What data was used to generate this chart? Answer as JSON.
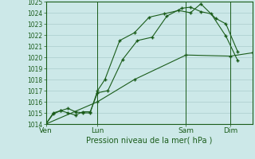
{
  "background_color": "#cce8e8",
  "grid_color": "#aacccc",
  "line_color": "#1a5c1a",
  "marker_color": "#1a5c1a",
  "xlabel": "Pression niveau de la mer( hPa )",
  "ylim": [
    1014,
    1025
  ],
  "xlim": [
    0,
    14
  ],
  "yticks": [
    1014,
    1015,
    1016,
    1017,
    1018,
    1019,
    1020,
    1021,
    1022,
    1023,
    1024,
    1025
  ],
  "xtick_labels": [
    "Ven",
    "Lun",
    "Sam",
    "Dim"
  ],
  "xtick_positions": [
    0,
    3.5,
    9.5,
    12.5
  ],
  "vline_positions": [
    0,
    3.5,
    9.5,
    12.5
  ],
  "series1_x": [
    0,
    0.5,
    1.0,
    1.5,
    2.0,
    2.5,
    3.0,
    3.5,
    4.2,
    5.2,
    6.2,
    7.2,
    8.2,
    9.2,
    9.8,
    10.5,
    11.2,
    12.2,
    13.0
  ],
  "series1_y": [
    1014.0,
    1014.9,
    1015.2,
    1015.0,
    1014.8,
    1015.1,
    1015.1,
    1016.8,
    1017.0,
    1019.8,
    1021.5,
    1021.8,
    1023.7,
    1024.4,
    1024.5,
    1024.1,
    1023.9,
    1021.9,
    1019.7
  ],
  "series2_x": [
    0,
    0.5,
    1.0,
    1.5,
    2.0,
    2.5,
    3.0,
    3.5,
    4.0,
    5.0,
    6.0,
    7.0,
    8.0,
    9.0,
    9.8,
    10.5,
    11.5,
    12.2,
    13.0
  ],
  "series2_y": [
    1014.0,
    1015.0,
    1015.2,
    1015.4,
    1015.1,
    1015.0,
    1015.0,
    1017.0,
    1018.0,
    1021.5,
    1022.2,
    1023.6,
    1023.9,
    1024.2,
    1024.0,
    1024.8,
    1023.5,
    1023.0,
    1020.5
  ],
  "series3_x": [
    0,
    3.5,
    6.0,
    9.5,
    12.5,
    14.0
  ],
  "series3_y": [
    1014.0,
    1016.0,
    1018.0,
    1020.2,
    1020.1,
    1020.4
  ]
}
